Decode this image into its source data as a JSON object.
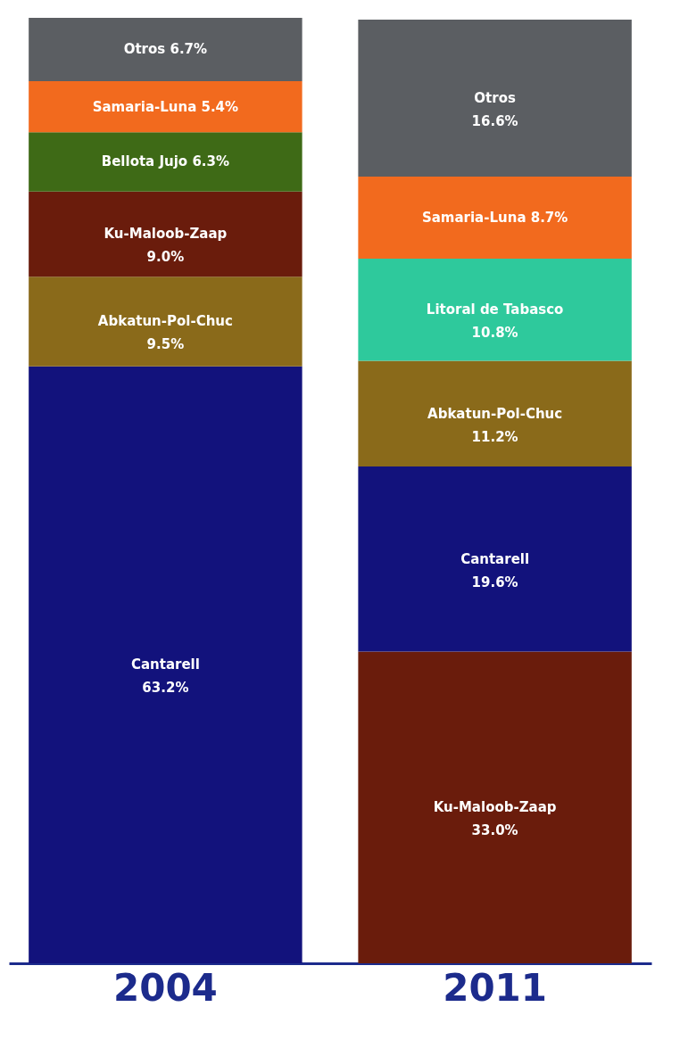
{
  "chart_data": {
    "type": "bar",
    "stacked": true,
    "tick_labels": "x",
    "categories": [
      "2004",
      "2011"
    ],
    "series": [
      {
        "values": [
          63.2,
          33.0
        ],
        "colors": [
          "#12127c",
          "#6a1c0c"
        ],
        "value_labels": [
          "Cantarell 63.2%",
          "Ku-Maloob-Zaap 33.0%"
        ]
      },
      {
        "values": [
          9.5,
          19.6
        ],
        "colors": [
          "#8a6a1a",
          "#12127c"
        ],
        "value_labels": [
          "Abkatun-Pol-Chuc 9.5%",
          "Cantarell 19.6%"
        ]
      },
      {
        "values": [
          9.0,
          11.2
        ],
        "colors": [
          "#6a1c0c",
          "#8a6a1a"
        ],
        "value_labels": [
          "Ku-Maloob-Zaap 9.0%",
          "Abkatun-Pol-Chuc 11.2%"
        ]
      },
      {
        "values": [
          6.3,
          10.8
        ],
        "colors": [
          "#3e6a16",
          "#2ec99c"
        ],
        "value_labels": [
          "Bellota Jujo 6.3%",
          "Litoral de Tabasco 10.8%"
        ]
      },
      {
        "values": [
          5.4,
          8.7
        ],
        "colors": [
          "#f26a1e",
          "#f26a1e"
        ],
        "value_labels": [
          "Samaria-Luna 5.4%",
          "Samaria-Luna 8.7%"
        ]
      },
      {
        "values": [
          6.7,
          16.6
        ],
        "colors": [
          "#5b5e62",
          "#5b5e62"
        ],
        "value_labels": [
          "Otros 6.7%",
          "Otros 16.6%"
        ]
      }
    ]
  }
}
